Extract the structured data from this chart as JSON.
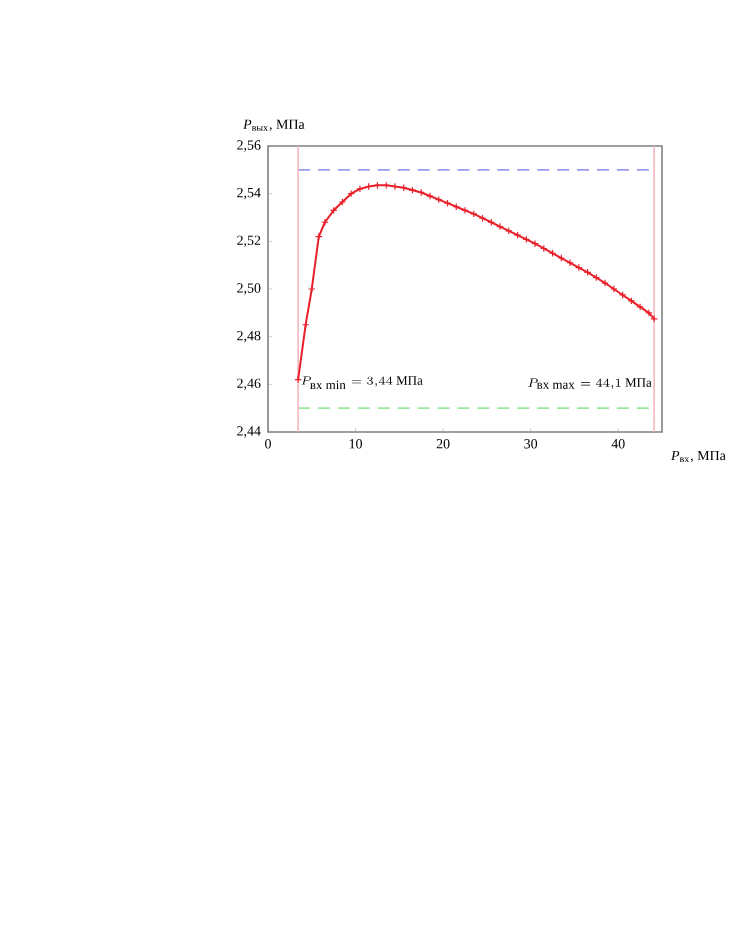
{
  "chart_data": {
    "type": "line",
    "xlabel": "*P*$_{вх}$, МПа",
    "ylabel": "*P*$_{вых}$, МПа",
    "x": [
      3.44,
      4.3,
      5.0,
      5.8,
      6.5,
      7.5,
      8.5,
      9.5,
      10.5,
      11.5,
      12.5,
      13.5,
      14.5,
      15.5,
      16.5,
      17.5,
      18.5,
      19.5,
      20.5,
      21.5,
      22.5,
      23.5,
      24.5,
      25.5,
      26.5,
      27.5,
      28.5,
      29.5,
      30.5,
      31.5,
      32.5,
      33.5,
      34.5,
      35.5,
      36.5,
      37.5,
      38.5,
      39.5,
      40.5,
      41.5,
      42.5,
      43.5,
      44.1
    ],
    "series": [
      {
        "color": "#e8202a",
        "values": [
          2.462,
          2.485,
          2.5,
          2.522,
          2.528,
          2.533,
          2.5365,
          2.54,
          2.542,
          2.543,
          2.5435,
          2.5435,
          2.543,
          2.5425,
          2.5415,
          2.5405,
          2.539,
          2.5375,
          2.536,
          2.5345,
          2.533,
          2.5315,
          2.5297,
          2.528,
          2.5262,
          2.5244,
          2.5226,
          2.5208,
          2.519,
          2.517,
          2.515,
          2.513,
          2.511,
          2.509,
          2.507,
          2.5048,
          2.5025,
          2.5,
          2.4975,
          2.495,
          2.4925,
          2.49,
          2.4875
        ]
      }
    ],
    "xlim": [
      0,
      45
    ],
    "ylim": [
      2.44,
      2.56
    ],
    "xticks": [
      0,
      10,
      20,
      30,
      40
    ],
    "yticks": [
      {
        "value": 2.44,
        "label": "2,44"
      },
      {
        "value": 2.46,
        "label": "2,46"
      },
      {
        "value": 2.48,
        "label": "2,48"
      },
      {
        "value": 2.5,
        "label": "2,50"
      },
      {
        "value": 2.52,
        "label": "2,52"
      },
      {
        "value": 2.54,
        "label": "2,54"
      },
      {
        "value": 2.56,
        "label": "2,56"
      }
    ],
    "ref_lines": [
      {
        "axis": "y",
        "value": 2.55,
        "color": "#9a9af0",
        "line_style": "dashed"
      },
      {
        "axis": "y",
        "value": 2.45,
        "color": "#9ae89a",
        "line_style": "dashed"
      },
      {
        "axis": "x",
        "value": 3.44,
        "color": "#f4b8c0",
        "line_style": "solid"
      },
      {
        "axis": "x",
        "value": 44.1,
        "color": "#f4b8c0",
        "line_style": "solid"
      }
    ],
    "annotations": [
      {
        "text": "P_{\\textrm{вх min}} = 3{,}44\\ \\textrm{МПа}",
        "x": 3.44,
        "y": 2.457
      },
      {
        "text": "P_{\\textrm{вх max}} = 44{,}1\\ \\textrm{МПа}",
        "x": 44.1,
        "y": 2.457
      }
    ],
    "marker": "cross",
    "line_style": "solid"
  }
}
